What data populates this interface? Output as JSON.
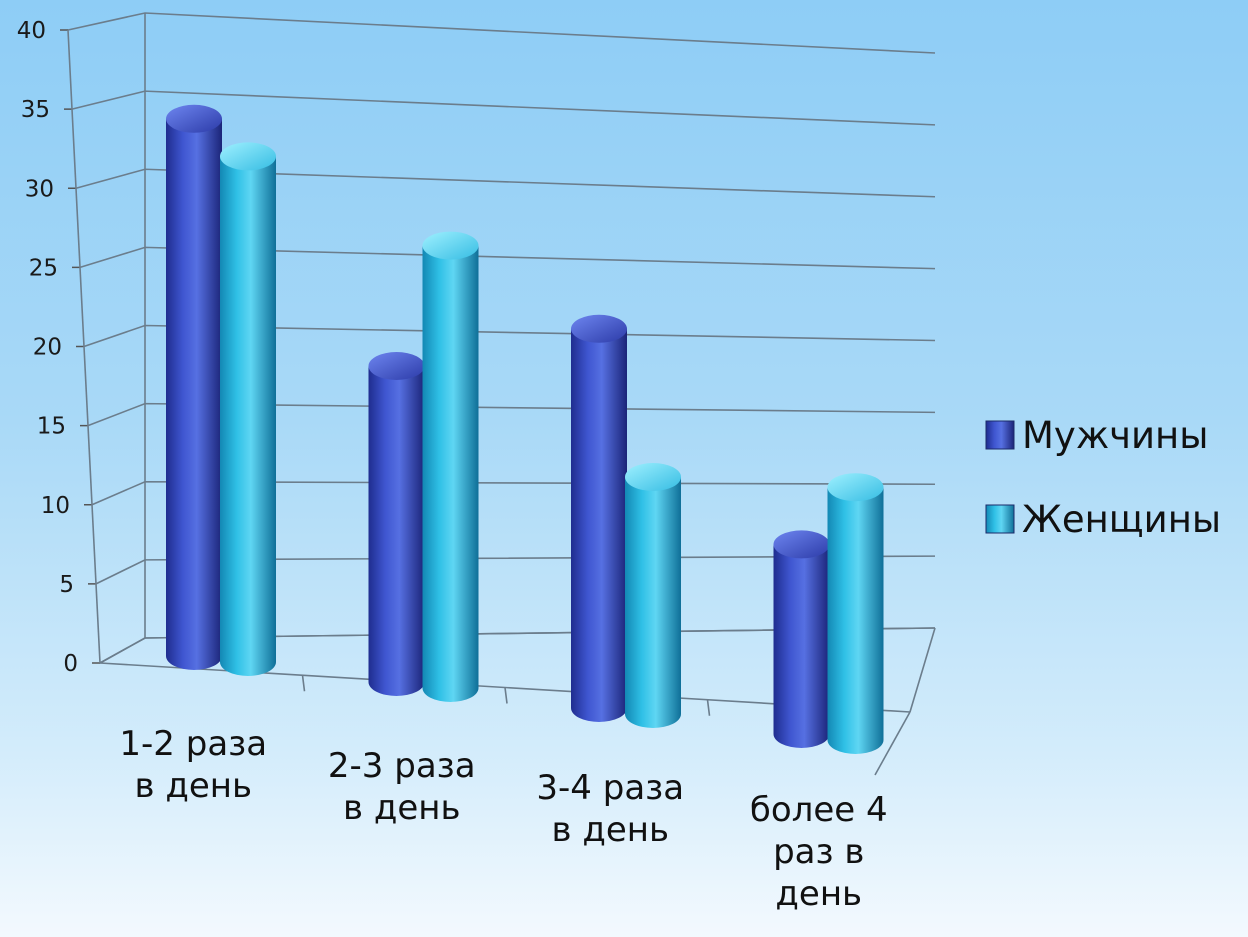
{
  "chart_data": {
    "type": "bar",
    "style": "3d-cylinder",
    "categories": [
      [
        "1-2 раза",
        "в день"
      ],
      [
        "2-3 раза",
        "в день"
      ],
      [
        "3-4 раза",
        "в день"
      ],
      [
        "более 4",
        "раз в",
        "день"
      ]
    ],
    "series": [
      {
        "name": "Мужчины",
        "values": [
          34,
          20,
          24,
          12
        ],
        "color": "#3a4fc4"
      },
      {
        "name": "Женщины",
        "values": [
          32,
          28,
          15,
          16
        ],
        "color": "#2cb7de"
      }
    ],
    "ylim": [
      0,
      40
    ],
    "yticks": [
      "0",
      "5",
      "10",
      "15",
      "20",
      "25",
      "30",
      "35",
      "40"
    ],
    "grid": true,
    "legend_position": "right"
  }
}
